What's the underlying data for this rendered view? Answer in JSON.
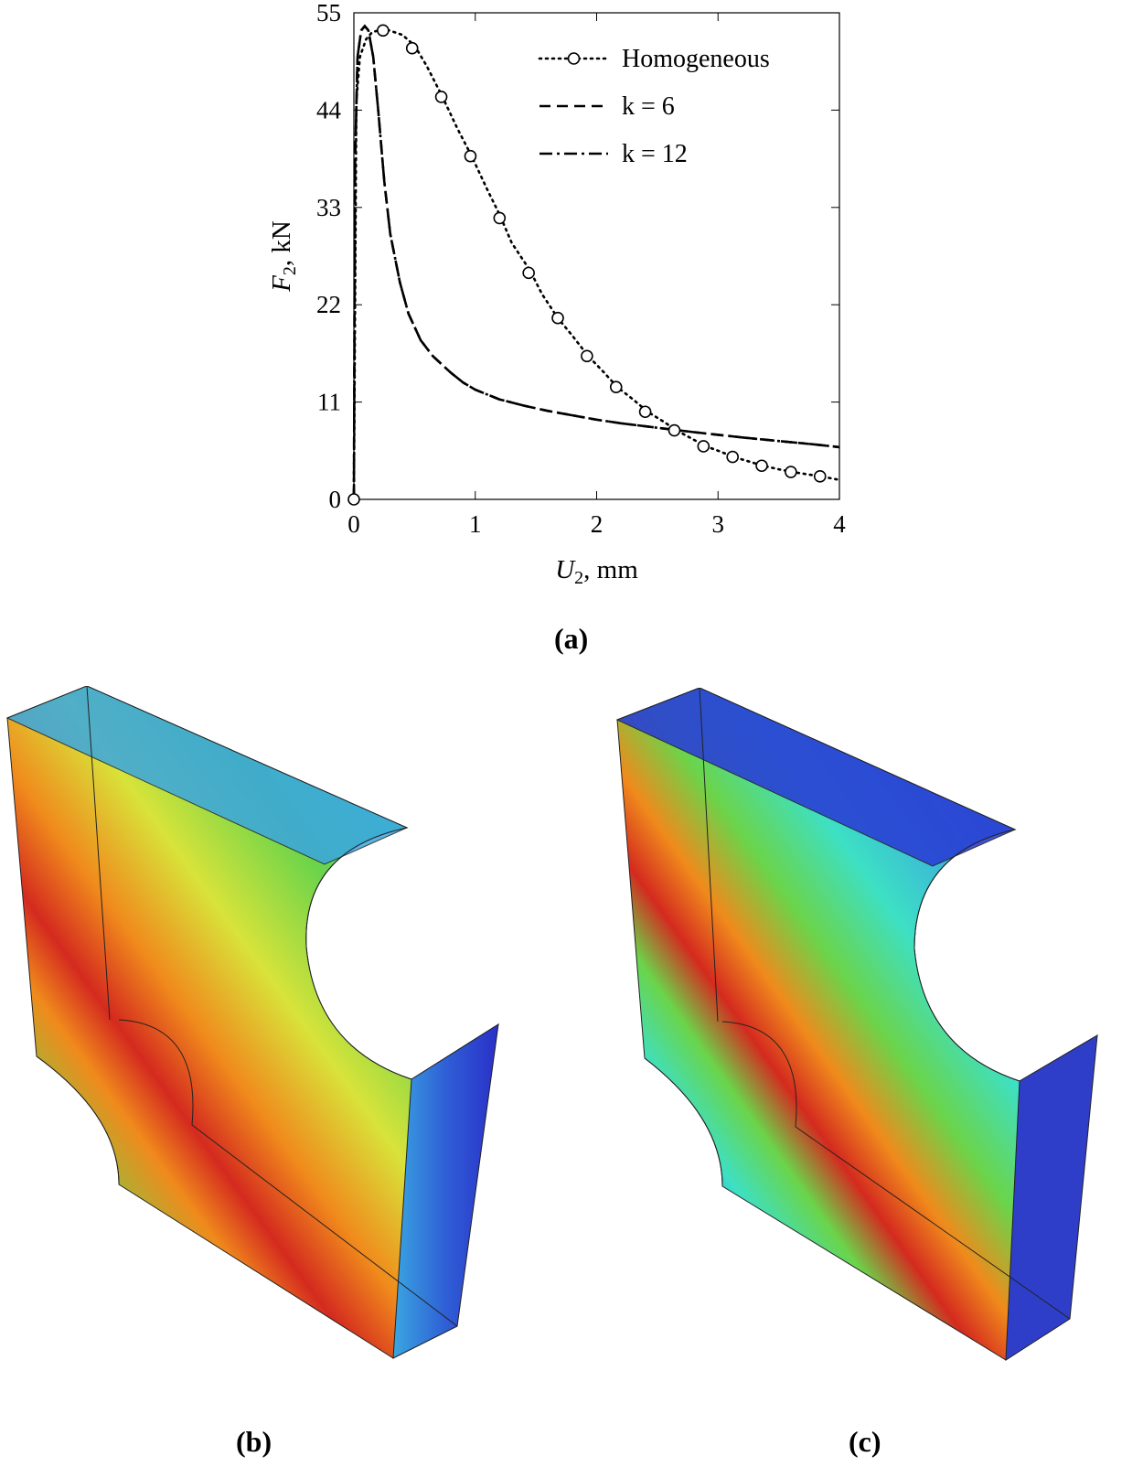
{
  "panels": {
    "a": "(a)",
    "b": "(b)",
    "c": "(c)"
  },
  "chart_data": {
    "type": "line",
    "xlabel_symbol": "U",
    "xlabel_sub": "2",
    "xlabel_unit": ", mm",
    "ylabel_symbol": "F",
    "ylabel_sub": "2",
    "ylabel_unit": ", kN",
    "xlim": [
      0,
      4
    ],
    "ylim": [
      0,
      55
    ],
    "xticks": [
      0,
      1,
      2,
      3,
      4
    ],
    "yticks": [
      0,
      11,
      22,
      33,
      44,
      55
    ],
    "xtick_labels": [
      "0",
      "1",
      "2",
      "3",
      "4"
    ],
    "ytick_labels": [
      "0",
      "11",
      "22",
      "33",
      "44",
      "55"
    ],
    "grid": false,
    "legend_position": "top-right",
    "series": [
      {
        "name": "Homogeneous",
        "style": "dotted-circles",
        "x": [
          0,
          0.02,
          0.05,
          0.1,
          0.15,
          0.25,
          0.4,
          0.5,
          0.6,
          0.73,
          0.85,
          0.97,
          1.1,
          1.2,
          1.3,
          1.45,
          1.55,
          1.68,
          1.8,
          1.93,
          2.05,
          2.17,
          2.3,
          2.42,
          2.55,
          2.66,
          2.78,
          2.9,
          3.0,
          3.13,
          3.25,
          3.37,
          3.5,
          3.61,
          3.75,
          3.85,
          4.0
        ],
        "y": [
          0,
          45,
          50,
          52,
          52.8,
          53.2,
          52.5,
          51.3,
          49,
          45.5,
          42,
          38.8,
          35,
          32.2,
          29,
          25.9,
          23.2,
          20.5,
          18.5,
          16.2,
          14.5,
          12.7,
          11.3,
          9.9,
          8.8,
          7.8,
          6.9,
          6.0,
          5.5,
          4.8,
          4.3,
          3.8,
          3.4,
          3.1,
          2.8,
          2.6,
          2.2
        ]
      },
      {
        "name": "k = 6",
        "style": "dashed",
        "x": [
          0,
          0.01,
          0.03,
          0.06,
          0.09,
          0.12,
          0.16,
          0.2,
          0.25,
          0.3,
          0.38,
          0.45,
          0.55,
          0.65,
          0.8,
          0.9,
          1.0,
          1.2,
          1.4,
          1.6,
          1.8,
          2.0,
          2.2,
          2.5,
          2.8,
          3.0,
          3.2,
          3.5,
          3.8,
          4.0
        ],
        "y": [
          0,
          38,
          50,
          53,
          53.5,
          53,
          50,
          44,
          36,
          30,
          24.5,
          21,
          18,
          16.2,
          14.3,
          13.2,
          12.4,
          11.3,
          10.6,
          10.0,
          9.5,
          9.0,
          8.6,
          8.1,
          7.6,
          7.3,
          7.0,
          6.6,
          6.2,
          5.9
        ]
      },
      {
        "name": "k = 12",
        "style": "dash-dot",
        "x": [
          0,
          0.01,
          0.03,
          0.06,
          0.09,
          0.12,
          0.16,
          0.2,
          0.25,
          0.3,
          0.38,
          0.45,
          0.55,
          0.65,
          0.8,
          0.9,
          1.0,
          1.2,
          1.4,
          1.6,
          1.8,
          2.0,
          2.2,
          2.5,
          2.8,
          3.0,
          3.2,
          3.5,
          3.8,
          4.0
        ],
        "y": [
          0,
          38,
          50,
          53,
          53.5,
          53,
          50,
          44,
          36,
          30,
          24.5,
          21,
          18,
          16.2,
          14.3,
          13.2,
          12.4,
          11.3,
          10.6,
          10.0,
          9.5,
          9.0,
          8.6,
          8.1,
          7.6,
          7.3,
          7.0,
          6.6,
          6.2,
          5.9
        ]
      }
    ],
    "marker_points": {
      "x": [
        0,
        0.24,
        0.48,
        0.72,
        0.96,
        1.2,
        1.44,
        1.68,
        1.92,
        2.16,
        2.4,
        2.64,
        2.88,
        3.12,
        3.36,
        3.6,
        3.84
      ],
      "y": [
        0,
        53,
        51,
        45.5,
        38.8,
        31.8,
        25.6,
        20.5,
        16.2,
        12.7,
        9.9,
        7.8,
        6.0,
        4.8,
        3.8,
        3.1,
        2.6
      ]
    }
  },
  "colors": {
    "axis": "#000000",
    "line": "#000000",
    "fem_red": "#d42a1f",
    "fem_orange": "#f08a1c",
    "fem_yellow": "#d8e33a",
    "fem_green": "#6bd44a",
    "fem_cyan": "#3de0c4",
    "fem_lightblue": "#3aa6e0",
    "fem_blue": "#2f5fd6",
    "fem_darkblue": "#2a2fc8"
  }
}
